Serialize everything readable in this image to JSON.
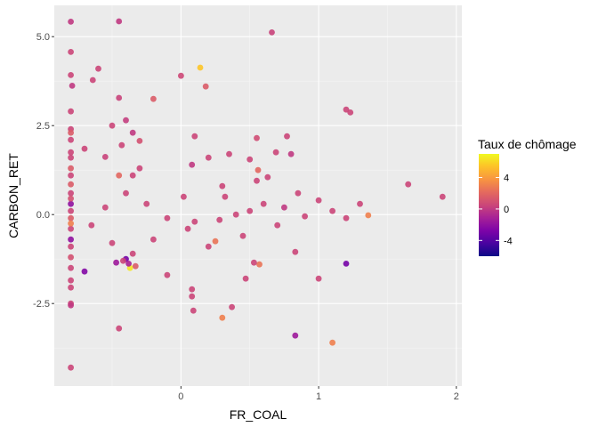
{
  "chart_data": {
    "type": "scatter",
    "xlabel": "FR_COAL",
    "ylabel": "CARBON_RET",
    "xlim": [
      -0.92,
      2.04
    ],
    "ylim": [
      -4.82,
      5.88
    ],
    "x_ticks": [
      0,
      1,
      2
    ],
    "x_tick_labels": [
      "0",
      "1",
      "2"
    ],
    "y_ticks": [
      -2.5,
      0,
      2.5,
      5
    ],
    "y_tick_labels": [
      "-2.5",
      "0.0",
      "2.5",
      "5.0"
    ],
    "grid": true,
    "legend_position": "right",
    "colors": {
      "panel": "#ebebeb",
      "grid_major": "#ffffff",
      "grid_minor": "#f5f5f5",
      "scale_low": "#0d0887",
      "scale_mid": "#cc4778",
      "scale_high": "#f0f921"
    },
    "color_scale": {
      "title": "Taux de chômage",
      "palette": "plasma",
      "min": -6,
      "max": 7,
      "breaks": [
        4,
        0,
        -4
      ],
      "break_labels": [
        "4",
        "0",
        "-4"
      ]
    },
    "series": [
      {
        "points": [
          [
            -0.45,
            5.43,
            0
          ],
          [
            -0.8,
            5.42,
            0
          ],
          [
            0.66,
            5.12,
            0.4
          ],
          [
            0.14,
            4.13,
            5.5
          ],
          [
            -0.8,
            4.57,
            0.5
          ],
          [
            -0.6,
            4.1,
            0.5
          ],
          [
            -0.8,
            3.92,
            0.5
          ],
          [
            0,
            3.9,
            0.6
          ],
          [
            -0.64,
            3.78,
            0.5
          ],
          [
            0.18,
            3.6,
            1.5
          ],
          [
            -0.79,
            3.62,
            0
          ],
          [
            -0.45,
            3.28,
            0.4
          ],
          [
            -0.2,
            3.25,
            1.5
          ],
          [
            1.2,
            2.95,
            0.5
          ],
          [
            1.23,
            2.87,
            0.5
          ],
          [
            -0.4,
            2.65,
            0.2
          ],
          [
            -0.8,
            2.9,
            0.5
          ],
          [
            -0.5,
            2.5,
            0.5
          ],
          [
            -0.35,
            2.3,
            0
          ],
          [
            0.55,
            2.15,
            0.8
          ],
          [
            0.77,
            2.2,
            0.5
          ],
          [
            0.1,
            2.2,
            0.5
          ],
          [
            -0.3,
            2.07,
            1
          ],
          [
            -0.43,
            1.95,
            0.5
          ],
          [
            -0.7,
            1.85,
            0.5
          ],
          [
            0.35,
            1.7,
            0.5
          ],
          [
            0.8,
            1.7,
            0
          ],
          [
            0.69,
            1.75,
            0.5
          ],
          [
            -0.55,
            1.62,
            0.4
          ],
          [
            0.2,
            1.6,
            0.5
          ],
          [
            0.5,
            1.55,
            0.5
          ],
          [
            0.08,
            1.4,
            0
          ],
          [
            0.56,
            1.25,
            2
          ],
          [
            0.55,
            0.95,
            0.5
          ],
          [
            -0.3,
            1.3,
            0.5
          ],
          [
            -0.45,
            1.1,
            2
          ],
          [
            -0.35,
            1.1,
            0.5
          ],
          [
            0.63,
            1.05,
            0.5
          ],
          [
            1.65,
            0.85,
            0.5
          ],
          [
            1.9,
            0.5,
            0.5
          ],
          [
            1.36,
            -0.02,
            3
          ],
          [
            0.28,
            -0.15,
            0.5
          ],
          [
            0.32,
            0.5,
            0.5
          ],
          [
            0.25,
            -0.75,
            2.5
          ],
          [
            0.02,
            0.5,
            0.5
          ],
          [
            0.4,
            0,
            0.5
          ],
          [
            0.6,
            0.3,
            0.5
          ],
          [
            0.75,
            0.2,
            0
          ],
          [
            0.9,
            -0.05,
            0.5
          ],
          [
            1.0,
            0.4,
            0.5
          ],
          [
            1.1,
            0.1,
            0.5
          ],
          [
            1.3,
            0.3,
            0.5
          ],
          [
            1.2,
            -0.1,
            0.5
          ],
          [
            0.85,
            0.6,
            0.5
          ],
          [
            0.7,
            -0.3,
            0.5
          ],
          [
            0.45,
            -0.6,
            0.5
          ],
          [
            0.2,
            -0.9,
            0.5
          ],
          [
            0.05,
            -0.4,
            0.5
          ],
          [
            -0.1,
            -0.1,
            0.5
          ],
          [
            -0.25,
            0.3,
            0.5
          ],
          [
            -0.4,
            0.6,
            0.5
          ],
          [
            -0.55,
            0.2,
            0.5
          ],
          [
            -0.65,
            -0.3,
            0.5
          ],
          [
            -0.5,
            -0.8,
            0.5
          ],
          [
            -0.35,
            -1.1,
            0.5
          ],
          [
            -0.2,
            -0.7,
            0.5
          ],
          [
            0.1,
            -0.2,
            0.5
          ],
          [
            0.3,
            0.8,
            0.5
          ],
          [
            0.5,
            0.1,
            0.5
          ],
          [
            -0.7,
            -1.6,
            -2.5
          ],
          [
            -0.47,
            -1.35,
            -1.5
          ],
          [
            -0.4,
            -1.25,
            -3
          ],
          [
            -0.37,
            -1.5,
            6.5
          ],
          [
            -0.33,
            -1.45,
            1.5
          ],
          [
            -0.38,
            -1.38,
            -1
          ],
          [
            -0.42,
            -1.3,
            0.5
          ],
          [
            -0.1,
            -1.7,
            0.5
          ],
          [
            0.57,
            -1.4,
            2.5
          ],
          [
            0.53,
            -1.35,
            0.5
          ],
          [
            0.47,
            -1.8,
            0.5
          ],
          [
            0.83,
            -1.05,
            0.5
          ],
          [
            1.2,
            -1.38,
            -3
          ],
          [
            1.0,
            -1.8,
            0.5
          ],
          [
            0.08,
            -2.1,
            0.5
          ],
          [
            0.08,
            -2.3,
            0.5
          ],
          [
            0.3,
            -2.9,
            3
          ],
          [
            0.09,
            -2.7,
            0.5
          ],
          [
            0.37,
            -2.6,
            0.5
          ],
          [
            -0.45,
            -3.2,
            0.5
          ],
          [
            0.83,
            -3.4,
            -1.5
          ],
          [
            1.1,
            -3.6,
            3
          ],
          [
            -0.8,
            -4.3,
            0.5
          ],
          [
            -0.8,
            -2.5,
            0.5
          ],
          [
            -0.8,
            -2.05,
            0.5
          ],
          [
            -0.8,
            -1.5,
            0.5
          ],
          [
            -0.8,
            -0.9,
            0.5
          ],
          [
            -0.8,
            -0.4,
            0.5
          ],
          [
            -0.8,
            0.1,
            0.5
          ],
          [
            -0.8,
            0.6,
            0.5
          ],
          [
            -0.8,
            1.1,
            0.5
          ],
          [
            -0.8,
            1.6,
            0.5
          ],
          [
            -0.8,
            2.1,
            0.5
          ],
          [
            -0.8,
            2.4,
            0.5
          ],
          [
            -0.8,
            -2.55,
            0
          ],
          [
            -0.8,
            1.3,
            1.5
          ],
          [
            -0.8,
            0.3,
            -2
          ],
          [
            -0.8,
            -0.1,
            1.5
          ],
          [
            -0.8,
            -0.7,
            -2
          ],
          [
            -0.8,
            -1.2,
            1
          ],
          [
            -0.8,
            0.85,
            1.5
          ],
          [
            -0.8,
            -1.85,
            0.5
          ],
          [
            -0.8,
            2.3,
            1.5
          ],
          [
            -0.8,
            1.75,
            0.5
          ],
          [
            -0.8,
            -0.25,
            3
          ],
          [
            -0.8,
            0.45,
            1
          ]
        ]
      }
    ]
  }
}
